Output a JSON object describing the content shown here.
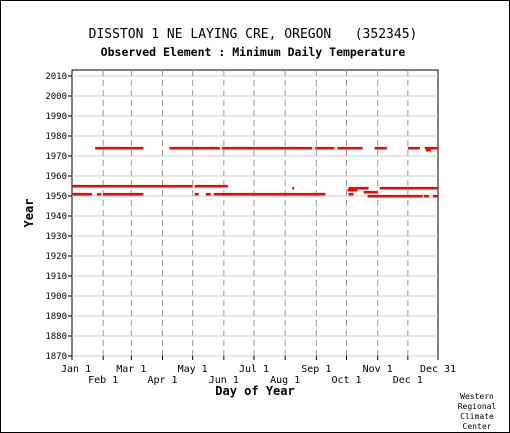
{
  "chart_data": {
    "type": "scatter",
    "title": "DISSTON 1 NE LAYING CRE, OREGON   (352345)",
    "subtitle": "Observed Element : Minimum Daily Temperature",
    "xlabel": "Day of Year",
    "ylabel": "Year",
    "ylim": [
      1870,
      2010
    ],
    "yticks": [
      1870,
      1880,
      1890,
      1900,
      1910,
      1920,
      1930,
      1940,
      1950,
      1960,
      1970,
      1980,
      1990,
      2000,
      2010
    ],
    "xlim": [
      1,
      365
    ],
    "xticks_top_row": [
      {
        "label": "Jan 1",
        "day": 1
      },
      {
        "label": "Mar 1",
        "day": 60
      },
      {
        "label": "May 1",
        "day": 121
      },
      {
        "label": "Jul 1",
        "day": 182
      },
      {
        "label": "Sep 1",
        "day": 244
      },
      {
        "label": "Nov 1",
        "day": 305
      },
      {
        "label": "Dec 31",
        "day": 365
      }
    ],
    "xticks_bottom_row": [
      {
        "label": "Feb 1",
        "day": 32
      },
      {
        "label": "Apr 1",
        "day": 91
      },
      {
        "label": "Jun 1",
        "day": 152
      },
      {
        "label": "Aug 1",
        "day": 213
      },
      {
        "label": "Oct 1",
        "day": 274
      },
      {
        "label": "Dec 1",
        "day": 335
      }
    ],
    "grid": true,
    "grid_style": "dashed vertical lines at month starts",
    "mark_color": "#ff0000",
    "series": [
      {
        "year": 1974,
        "ranges": [
          [
            24,
            72
          ],
          [
            98,
            148
          ],
          [
            150,
            240
          ],
          [
            243,
            262
          ],
          [
            265,
            290
          ],
          [
            302,
            314
          ],
          [
            335,
            347
          ],
          [
            352,
            365
          ]
        ]
      },
      {
        "year": 1973,
        "ranges": [
          [
            353,
            358
          ]
        ]
      },
      {
        "year": 1955,
        "ranges": [
          [
            1,
            121
          ],
          [
            123,
            156
          ]
        ]
      },
      {
        "year": 1954,
        "ranges": [
          [
            220,
            222
          ],
          [
            276,
            296
          ],
          [
            307,
            365
          ]
        ]
      },
      {
        "year": 1953,
        "ranges": [
          [
            275,
            285
          ]
        ]
      },
      {
        "year": 1952,
        "ranges": [
          [
            291,
            305
          ]
        ]
      },
      {
        "year": 1951,
        "ranges": [
          [
            1,
            21
          ],
          [
            26,
            30
          ],
          [
            32,
            72
          ],
          [
            123,
            127
          ],
          [
            134,
            139
          ],
          [
            142,
            253
          ],
          [
            276,
            281
          ]
        ]
      },
      {
        "year": 1950,
        "ranges": [
          [
            295,
            350
          ],
          [
            351,
            356
          ],
          [
            360,
            365
          ]
        ]
      }
    ]
  },
  "credit": [
    "Western",
    "Regional",
    "Climate",
    "Center"
  ]
}
